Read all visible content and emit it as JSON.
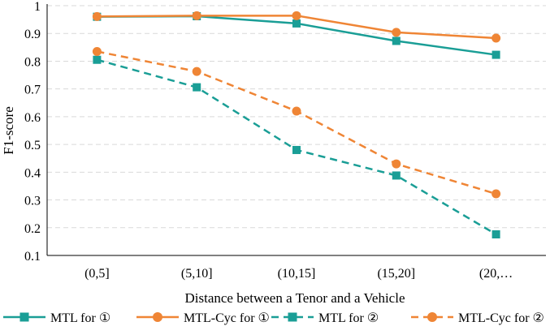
{
  "chart_data": {
    "type": "line",
    "title": "",
    "xlabel": "Distance between a Tenor and a Vehicle",
    "ylabel": "F1-score",
    "categories": [
      "(0,5]",
      "(5,10]",
      "(10,15]",
      "(15,20]",
      "(20,…"
    ],
    "ylim": [
      0.1,
      1.0
    ],
    "yticks": [
      "0.1",
      "0.2",
      "0.3",
      "0.4",
      "0.5",
      "0.6",
      "0.7",
      "0.8",
      "0.9",
      "1"
    ],
    "grid": "horizontal dashed",
    "legend_position": "bottom",
    "series": [
      {
        "name": "MTL for ①",
        "values": [
          0.96,
          0.962,
          0.936,
          0.873,
          0.823
        ],
        "color": "#1a9e96",
        "marker": "square",
        "dash": "solid"
      },
      {
        "name": "MTL-Cyc for ①",
        "values": [
          0.961,
          0.964,
          0.964,
          0.904,
          0.883
        ],
        "color": "#ef8535",
        "marker": "circle",
        "dash": "solid"
      },
      {
        "name": "MTL for ②",
        "values": [
          0.805,
          0.706,
          0.48,
          0.388,
          0.176
        ],
        "color": "#1a9e96",
        "marker": "square",
        "dash": "dashed"
      },
      {
        "name": "MTL-Cyc for ②",
        "values": [
          0.835,
          0.763,
          0.62,
          0.43,
          0.322
        ],
        "color": "#ef8535",
        "marker": "circle",
        "dash": "dashed"
      }
    ]
  }
}
